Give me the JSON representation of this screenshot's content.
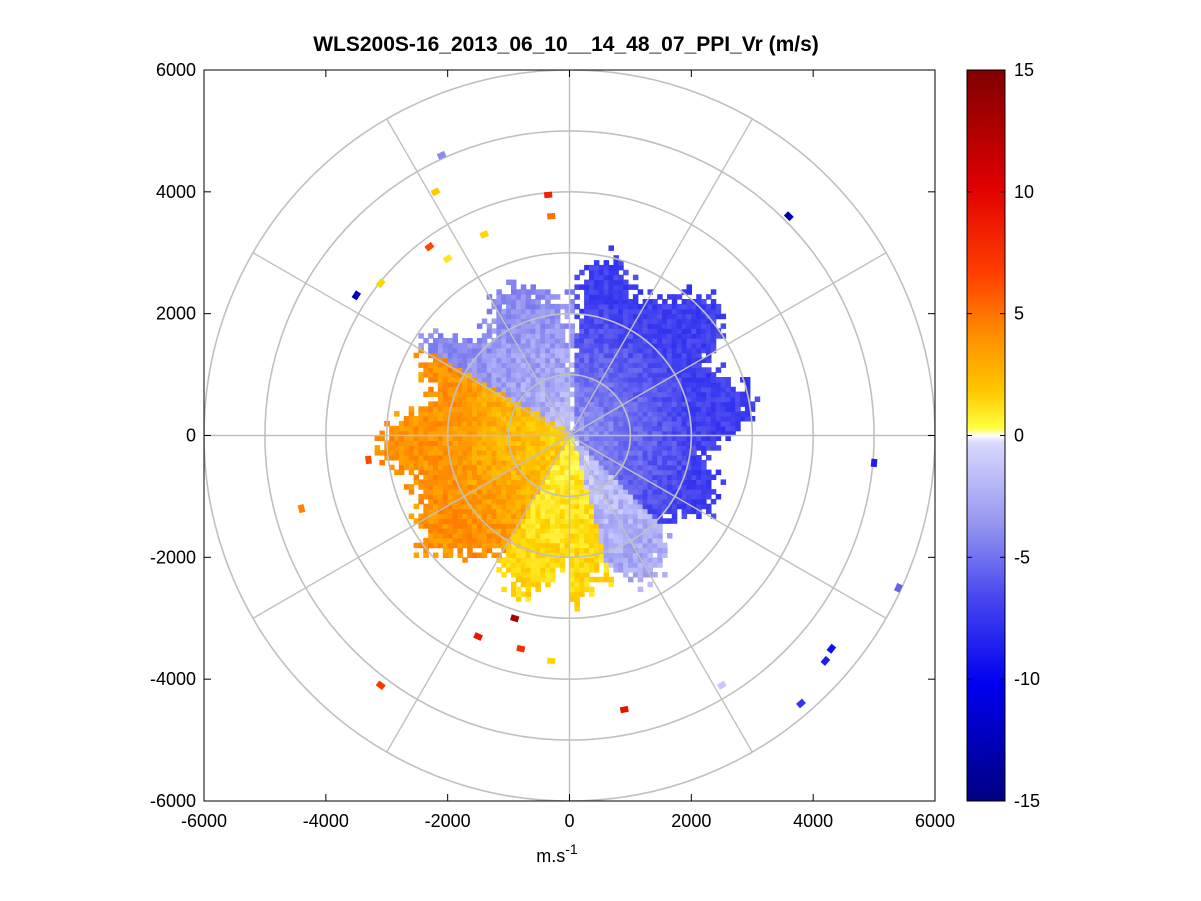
{
  "chart_data": {
    "type": "heatmap",
    "subtype": "polar-ppi",
    "title": "WLS200S-16_2013_06_10__14_48_07_PPI_Vr (m/s)",
    "xlabel": "m.s",
    "xlabel_superscript": "-1",
    "ylabel": "",
    "xlim": [
      -6000,
      6000
    ],
    "ylim": [
      -6000,
      6000
    ],
    "x_ticks": [
      -6000,
      -4000,
      -2000,
      0,
      2000,
      4000,
      6000
    ],
    "y_ticks": [
      -6000,
      -4000,
      -2000,
      0,
      2000,
      4000,
      6000
    ],
    "x_tick_labels": [
      "-6000",
      "-4000",
      "-2000",
      "0",
      "2000",
      "4000",
      "6000"
    ],
    "y_tick_labels": [
      "-6000",
      "-4000",
      "-2000",
      "0",
      "2000",
      "4000",
      "6000"
    ],
    "polar_grid": {
      "range_rings": [
        1000,
        2000,
        3000,
        4000,
        5000,
        6000
      ],
      "spokes_deg": [
        0,
        30,
        60,
        90,
        120,
        150,
        180,
        210,
        240,
        270,
        300,
        330
      ]
    },
    "colorbar": {
      "clim": [
        -15,
        15
      ],
      "ticks": [
        15,
        10,
        5,
        0,
        -5,
        -10,
        -15
      ],
      "tick_labels": [
        "15",
        "10",
        "5",
        "0",
        "-5",
        "-10",
        "-15"
      ],
      "colormap": "blue-white-yellow-red"
    },
    "field": {
      "name": "radial velocity Vr",
      "units": "m/s",
      "max_range_main": 3000,
      "sectors": [
        {
          "from_deg": 90,
          "to_deg": 150,
          "vr": -3.0,
          "note": "light blue near north"
        },
        {
          "from_deg": -45,
          "to_deg": 90,
          "vr": -6.0,
          "note": "blue, east side"
        },
        {
          "from_deg": -75,
          "to_deg": -45,
          "vr": -2.0,
          "note": "pale blue, south-east"
        },
        {
          "from_deg": 150,
          "to_deg": 240,
          "vr": 4.5,
          "note": "orange, west side"
        },
        {
          "from_deg": 240,
          "to_deg": 285,
          "vr": 2.0,
          "note": "yellow, south"
        }
      ],
      "outliers": [
        {
          "x": -2200,
          "y": 4000,
          "vr": 2.5
        },
        {
          "x": -2300,
          "y": 3100,
          "vr": 7.0
        },
        {
          "x": -3500,
          "y": 2300,
          "vr": -12.0
        },
        {
          "x": -3100,
          "y": 2500,
          "vr": 2.0
        },
        {
          "x": -2000,
          "y": 2900,
          "vr": 1.5
        },
        {
          "x": -1400,
          "y": 3300,
          "vr": 2.0
        },
        {
          "x": -300,
          "y": 3600,
          "vr": 5.5
        },
        {
          "x": -350,
          "y": 3950,
          "vr": 8.5
        },
        {
          "x": -2100,
          "y": 4600,
          "vr": -3.0
        },
        {
          "x": 3600,
          "y": 3600,
          "vr": -13.0
        },
        {
          "x": 5000,
          "y": -450,
          "vr": -8.0
        },
        {
          "x": 5400,
          "y": -2500,
          "vr": -4.5
        },
        {
          "x": 4300,
          "y": -3500,
          "vr": -9.0
        },
        {
          "x": 4200,
          "y": -3700,
          "vr": -8.0
        },
        {
          "x": 3800,
          "y": -4400,
          "vr": -6.5
        },
        {
          "x": 2500,
          "y": -4100,
          "vr": -1.0
        },
        {
          "x": 900,
          "y": -4500,
          "vr": 9.5
        },
        {
          "x": -300,
          "y": -3700,
          "vr": 2.0
        },
        {
          "x": -800,
          "y": -3500,
          "vr": 8.0
        },
        {
          "x": -1500,
          "y": -3300,
          "vr": 9.0
        },
        {
          "x": -900,
          "y": -3000,
          "vr": 13.0
        },
        {
          "x": -3100,
          "y": -4100,
          "vr": 7.5
        },
        {
          "x": -4400,
          "y": -1200,
          "vr": 5.0
        },
        {
          "x": -3300,
          "y": -400,
          "vr": 7.0
        }
      ]
    }
  }
}
